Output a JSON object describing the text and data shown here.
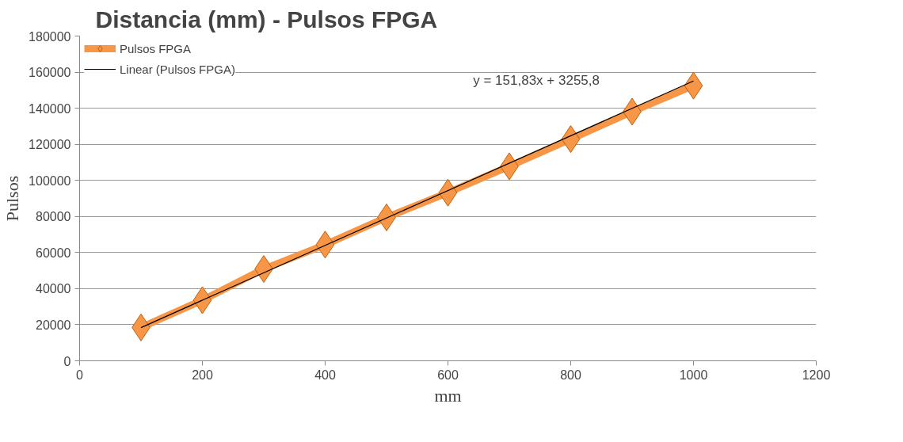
{
  "chart_data": {
    "type": "line",
    "title": "Distancia (mm) - Pulsos FPGA",
    "xlabel": "mm",
    "ylabel": "Pulsos",
    "x": [
      100,
      200,
      300,
      400,
      500,
      600,
      700,
      800,
      900,
      1000
    ],
    "series": [
      {
        "name": "Pulsos FPGA",
        "color": "#f79646",
        "marker": "diamond",
        "values": [
          18500,
          33600,
          50900,
          64400,
          79500,
          93200,
          107800,
          122900,
          138100,
          152500
        ]
      },
      {
        "name": "Linear (Pulsos FPGA)",
        "type": "line",
        "color": "#000000",
        "marker": "none",
        "x": [
          100,
          1000
        ],
        "values": [
          18400,
          155100
        ]
      }
    ],
    "annotations": [
      "y = 151,83x + 3255,8"
    ],
    "xlim": [
      0,
      1200
    ],
    "xticks": [
      0,
      200,
      400,
      600,
      800,
      1000,
      1200
    ],
    "ylim": [
      0,
      180000
    ],
    "yticks": [
      0,
      20000,
      40000,
      60000,
      80000,
      100000,
      120000,
      140000,
      160000,
      180000
    ],
    "grid": "y",
    "legend": "top left"
  }
}
